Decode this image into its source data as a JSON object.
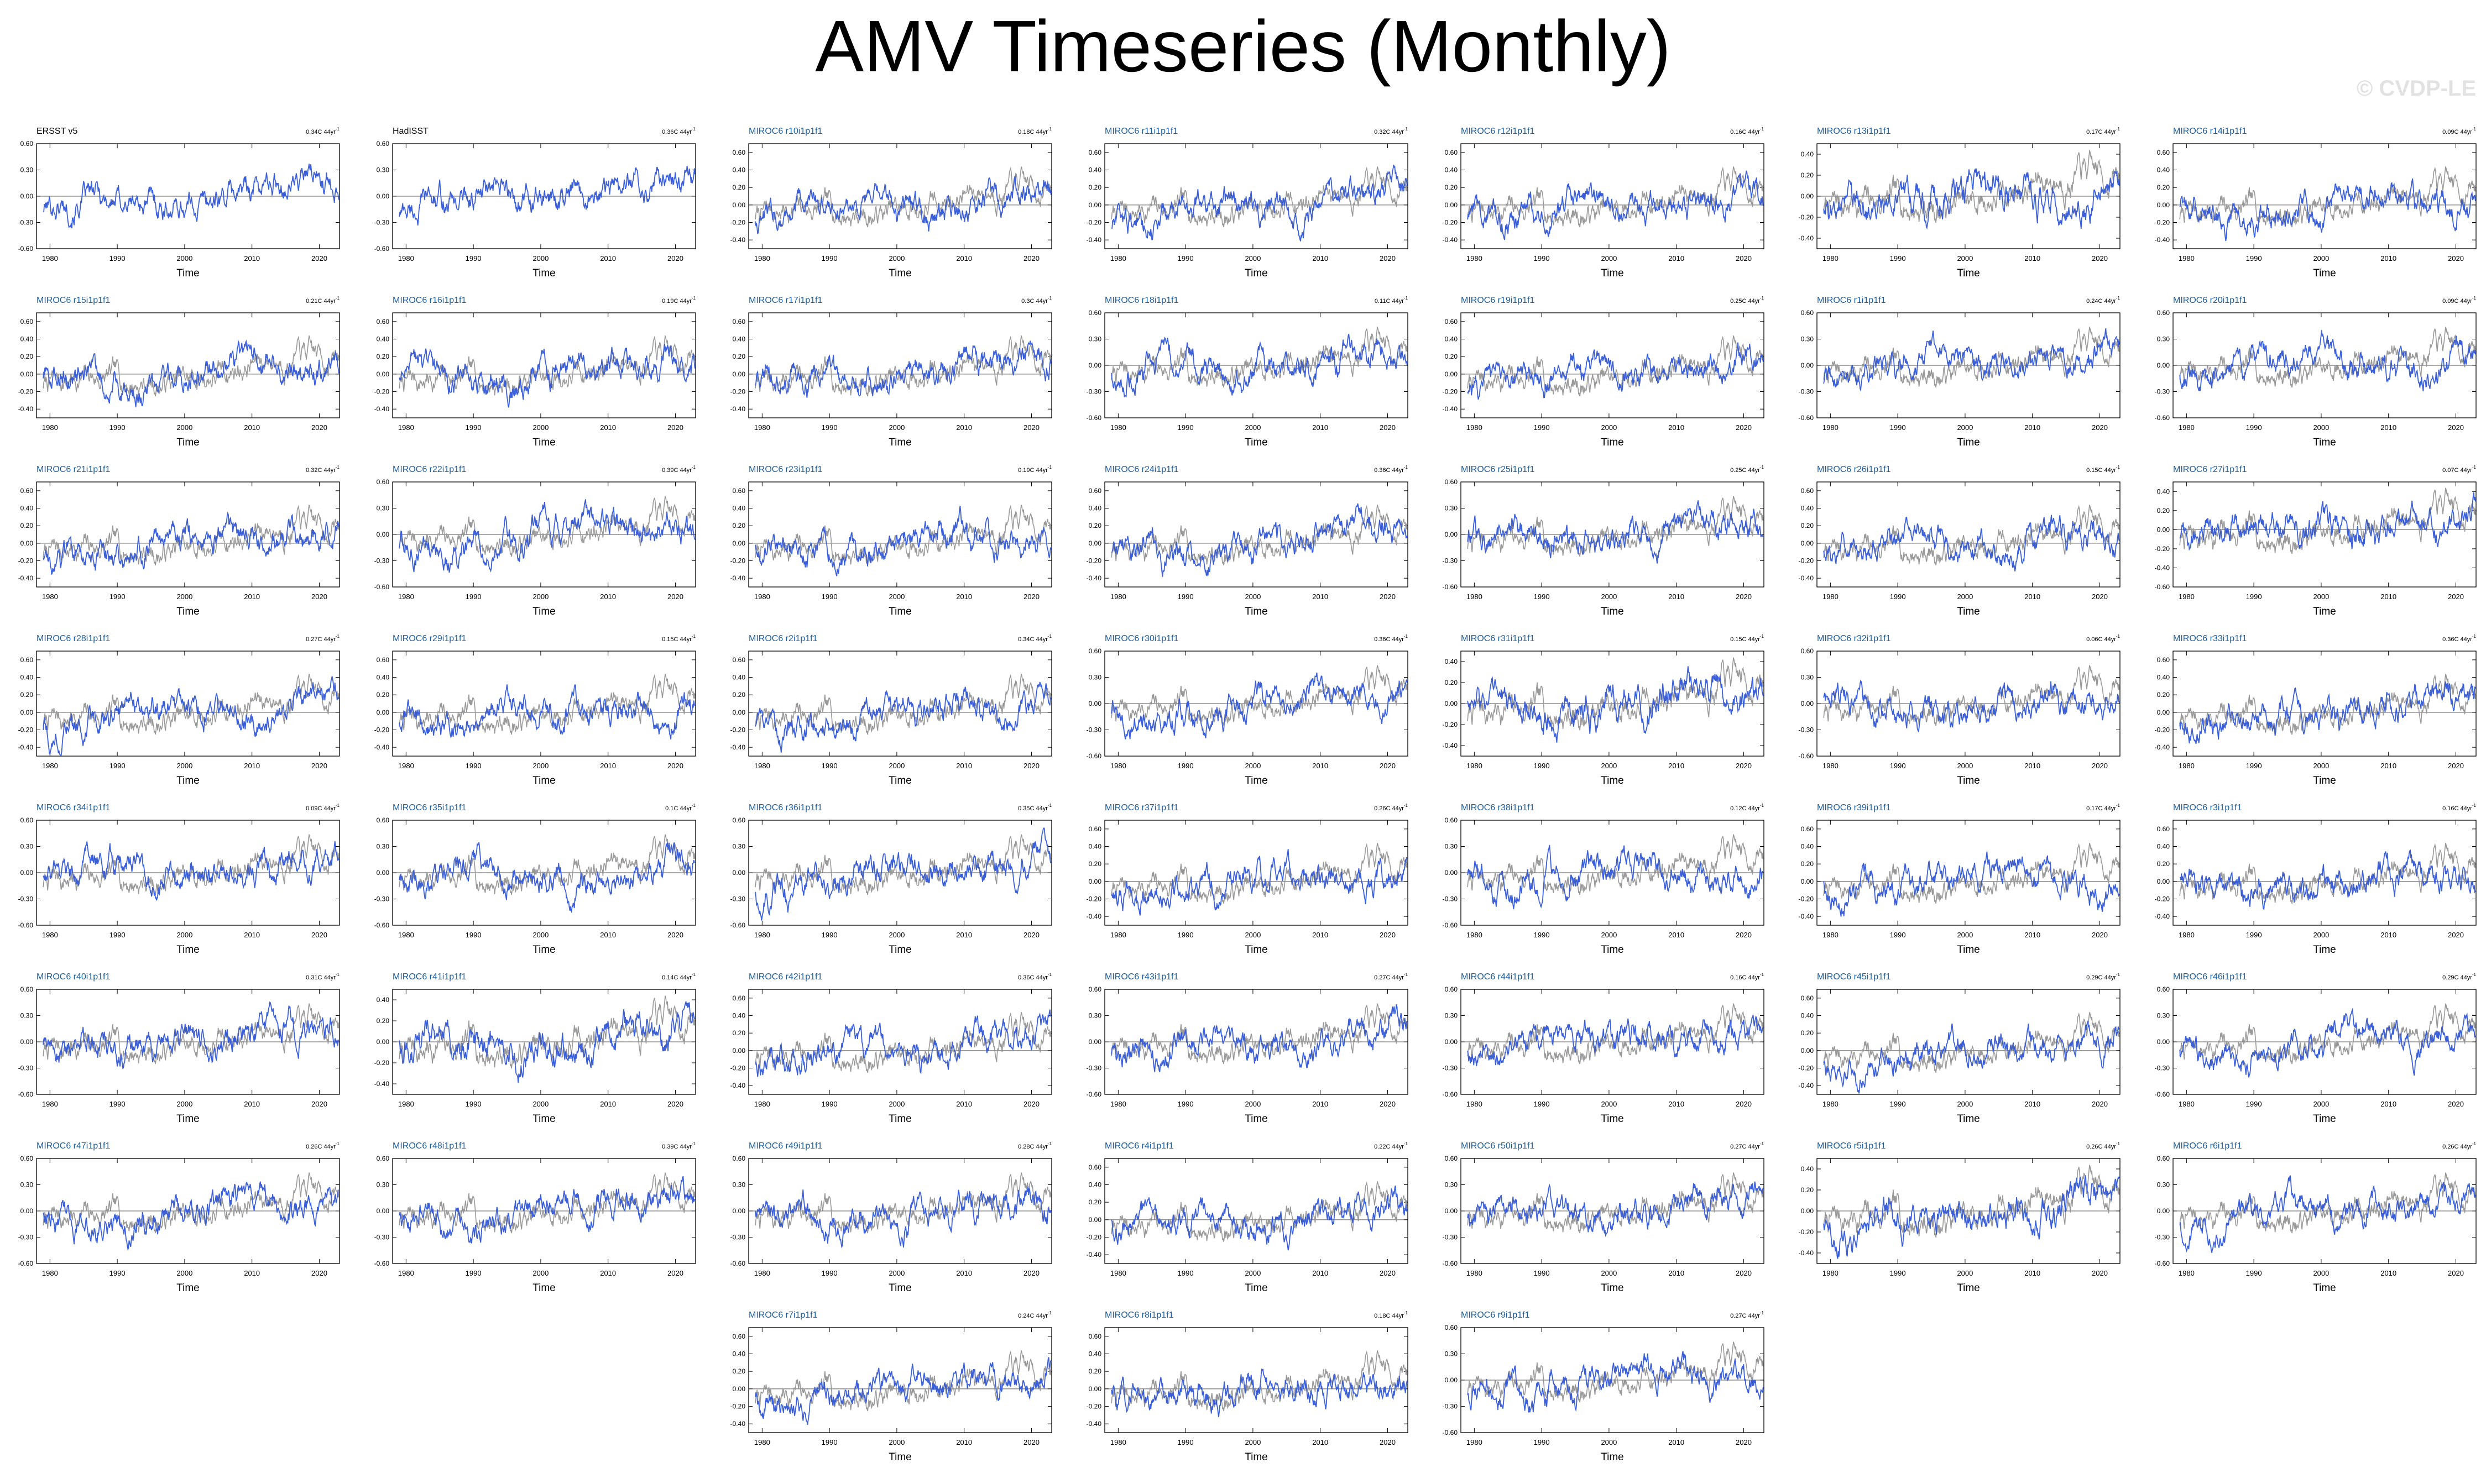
{
  "title": "AMV Timeseries (Monthly)",
  "watermark": "© CVDP-LE",
  "colors": {
    "observed": "#000000",
    "member": "#1a5fa0",
    "obs_line": "#999999",
    "ens_line": "#3a5fd8",
    "zero": "#555555"
  },
  "chart_data": {
    "type": "line",
    "xlabel": "Time",
    "xlim": [
      1978,
      2023
    ],
    "xticks": [
      1980,
      1990,
      2000,
      2010,
      2020
    ],
    "panels": [
      {
        "name": "ERSST v5",
        "trend": "0.34C 44yr",
        "label_type": "obs",
        "row": 0,
        "col": 0,
        "yticks": [
          "0.60",
          "0.30",
          "0.00",
          "-0.30",
          "-0.60"
        ],
        "ylim": [
          -0.6,
          0.6
        ],
        "obs": true
      },
      {
        "name": "HadISST",
        "trend": "0.36C 44yr",
        "label_type": "obs",
        "row": 0,
        "col": 1,
        "yticks": [
          "0.60",
          "0.30",
          "0.00",
          "-0.30",
          "-0.60"
        ],
        "ylim": [
          -0.6,
          0.6
        ],
        "obs": true
      },
      {
        "name": "MIROC6 r10i1p1f1",
        "trend": "0.18C 44yr",
        "row": 0,
        "col": 2,
        "yticks": [
          "0.60",
          "0.40",
          "0.20",
          "0.00",
          "-0.20",
          "-0.40"
        ],
        "ylim": [
          -0.5,
          0.7
        ]
      },
      {
        "name": "MIROC6 r11i1p1f1",
        "trend": "0.32C 44yr",
        "row": 0,
        "col": 3,
        "yticks": [
          "0.60",
          "0.40",
          "0.20",
          "0.00",
          "-0.20",
          "-0.40"
        ],
        "ylim": [
          -0.5,
          0.7
        ]
      },
      {
        "name": "MIROC6 r12i1p1f1",
        "trend": "0.16C 44yr",
        "row": 0,
        "col": 4,
        "yticks": [
          "0.60",
          "0.40",
          "0.20",
          "0.00",
          "-0.20",
          "-0.40"
        ],
        "ylim": [
          -0.5,
          0.7
        ]
      },
      {
        "name": "MIROC6 r13i1p1f1",
        "trend": "0.17C 44yr",
        "row": 0,
        "col": 5,
        "yticks": [
          "0.40",
          "0.20",
          "0.00",
          "-0.20",
          "-0.40"
        ],
        "ylim": [
          -0.5,
          0.5
        ]
      },
      {
        "name": "MIROC6 r14i1p1f1",
        "trend": "0.09C 44yr",
        "row": 0,
        "col": 6,
        "yticks": [
          "0.60",
          "0.40",
          "0.20",
          "0.00",
          "-0.20",
          "-0.40"
        ],
        "ylim": [
          -0.5,
          0.7
        ]
      },
      {
        "name": "MIROC6 r15i1p1f1",
        "trend": "0.21C 44yr",
        "row": 1,
        "col": 0,
        "yticks": [
          "0.60",
          "0.40",
          "0.20",
          "0.00",
          "-0.20",
          "-0.40"
        ],
        "ylim": [
          -0.5,
          0.7
        ]
      },
      {
        "name": "MIROC6 r16i1p1f1",
        "trend": "0.19C 44yr",
        "row": 1,
        "col": 1,
        "yticks": [
          "0.60",
          "0.40",
          "0.20",
          "0.00",
          "-0.20",
          "-0.40"
        ],
        "ylim": [
          -0.5,
          0.7
        ]
      },
      {
        "name": "MIROC6 r17i1p1f1",
        "trend": "0.3C 44yr",
        "row": 1,
        "col": 2,
        "yticks": [
          "0.60",
          "0.40",
          "0.20",
          "0.00",
          "-0.20",
          "-0.40"
        ],
        "ylim": [
          -0.5,
          0.7
        ]
      },
      {
        "name": "MIROC6 r18i1p1f1",
        "trend": "0.11C 44yr",
        "row": 1,
        "col": 3,
        "yticks": [
          "0.60",
          "0.30",
          "0.00",
          "-0.30",
          "-0.60"
        ],
        "ylim": [
          -0.6,
          0.6
        ]
      },
      {
        "name": "MIROC6 r19i1p1f1",
        "trend": "0.25C 44yr",
        "row": 1,
        "col": 4,
        "yticks": [
          "0.60",
          "0.40",
          "0.20",
          "0.00",
          "-0.20",
          "-0.40"
        ],
        "ylim": [
          -0.5,
          0.7
        ]
      },
      {
        "name": "MIROC6 r1i1p1f1",
        "trend": "0.24C 44yr",
        "row": 1,
        "col": 5,
        "yticks": [
          "0.60",
          "0.30",
          "0.00",
          "-0.30",
          "-0.60"
        ],
        "ylim": [
          -0.6,
          0.6
        ]
      },
      {
        "name": "MIROC6 r20i1p1f1",
        "trend": "0.09C 44yr",
        "row": 1,
        "col": 6,
        "yticks": [
          "0.60",
          "0.30",
          "0.00",
          "-0.30",
          "-0.60"
        ],
        "ylim": [
          -0.6,
          0.6
        ]
      },
      {
        "name": "MIROC6 r21i1p1f1",
        "trend": "0.32C 44yr",
        "row": 2,
        "col": 0,
        "yticks": [
          "0.60",
          "0.40",
          "0.20",
          "0.00",
          "-0.20",
          "-0.40"
        ],
        "ylim": [
          -0.5,
          0.7
        ]
      },
      {
        "name": "MIROC6 r22i1p1f1",
        "trend": "0.39C 44yr",
        "row": 2,
        "col": 1,
        "yticks": [
          "0.60",
          "0.30",
          "0.00",
          "-0.30",
          "-0.60"
        ],
        "ylim": [
          -0.6,
          0.6
        ]
      },
      {
        "name": "MIROC6 r23i1p1f1",
        "trend": "0.19C 44yr",
        "row": 2,
        "col": 2,
        "yticks": [
          "0.60",
          "0.40",
          "0.20",
          "0.00",
          "-0.20",
          "-0.40"
        ],
        "ylim": [
          -0.5,
          0.7
        ]
      },
      {
        "name": "MIROC6 r24i1p1f1",
        "trend": "0.36C 44yr",
        "row": 2,
        "col": 3,
        "yticks": [
          "0.60",
          "0.40",
          "0.20",
          "0.00",
          "-0.20",
          "-0.40"
        ],
        "ylim": [
          -0.5,
          0.7
        ]
      },
      {
        "name": "MIROC6 r25i1p1f1",
        "trend": "0.25C 44yr",
        "row": 2,
        "col": 4,
        "yticks": [
          "0.60",
          "0.30",
          "0.00",
          "-0.30",
          "-0.60"
        ],
        "ylim": [
          -0.6,
          0.6
        ]
      },
      {
        "name": "MIROC6 r26i1p1f1",
        "trend": "0.15C 44yr",
        "row": 2,
        "col": 5,
        "yticks": [
          "0.60",
          "0.40",
          "0.20",
          "0.00",
          "-0.20",
          "-0.40"
        ],
        "ylim": [
          -0.5,
          0.7
        ]
      },
      {
        "name": "MIROC6 r27i1p1f1",
        "trend": "0.07C 44yr",
        "row": 2,
        "col": 6,
        "yticks": [
          "0.40",
          "0.20",
          "0.00",
          "-0.20",
          "-0.40",
          "-0.60"
        ],
        "ylim": [
          -0.6,
          0.5
        ]
      },
      {
        "name": "MIROC6 r28i1p1f1",
        "trend": "0.27C 44yr",
        "row": 3,
        "col": 0,
        "yticks": [
          "0.60",
          "0.40",
          "0.20",
          "0.00",
          "-0.20",
          "-0.40"
        ],
        "ylim": [
          -0.5,
          0.7
        ]
      },
      {
        "name": "MIROC6 r29i1p1f1",
        "trend": "0.15C 44yr",
        "row": 3,
        "col": 1,
        "yticks": [
          "0.60",
          "0.40",
          "0.20",
          "0.00",
          "-0.20",
          "-0.40"
        ],
        "ylim": [
          -0.5,
          0.7
        ]
      },
      {
        "name": "MIROC6 r2i1p1f1",
        "trend": "0.34C 44yr",
        "row": 3,
        "col": 2,
        "yticks": [
          "0.60",
          "0.40",
          "0.20",
          "0.00",
          "-0.20",
          "-0.40"
        ],
        "ylim": [
          -0.5,
          0.7
        ]
      },
      {
        "name": "MIROC6 r30i1p1f1",
        "trend": "0.36C 44yr",
        "row": 3,
        "col": 3,
        "yticks": [
          "0.60",
          "0.30",
          "0.00",
          "-0.30",
          "-0.60"
        ],
        "ylim": [
          -0.6,
          0.6
        ]
      },
      {
        "name": "MIROC6 r31i1p1f1",
        "trend": "0.15C 44yr",
        "row": 3,
        "col": 4,
        "yticks": [
          "0.40",
          "0.20",
          "0.00",
          "-0.20",
          "-0.40"
        ],
        "ylim": [
          -0.5,
          0.5
        ]
      },
      {
        "name": "MIROC6 r32i1p1f1",
        "trend": "0.06C 44yr",
        "row": 3,
        "col": 5,
        "yticks": [
          "0.60",
          "0.30",
          "0.00",
          "-0.30",
          "-0.60"
        ],
        "ylim": [
          -0.6,
          0.6
        ]
      },
      {
        "name": "MIROC6 r33i1p1f1",
        "trend": "0.36C 44yr",
        "row": 3,
        "col": 6,
        "yticks": [
          "0.60",
          "0.40",
          "0.20",
          "0.00",
          "-0.20",
          "-0.40"
        ],
        "ylim": [
          -0.5,
          0.7
        ]
      },
      {
        "name": "MIROC6 r34i1p1f1",
        "trend": "0.09C 44yr",
        "row": 4,
        "col": 0,
        "yticks": [
          "0.60",
          "0.30",
          "0.00",
          "-0.30",
          "-0.60"
        ],
        "ylim": [
          -0.6,
          0.6
        ]
      },
      {
        "name": "MIROC6 r35i1p1f1",
        "trend": "0.1C 44yr",
        "row": 4,
        "col": 1,
        "yticks": [
          "0.60",
          "0.30",
          "0.00",
          "-0.30",
          "-0.60"
        ],
        "ylim": [
          -0.6,
          0.6
        ]
      },
      {
        "name": "MIROC6 r36i1p1f1",
        "trend": "0.35C 44yr",
        "row": 4,
        "col": 2,
        "yticks": [
          "0.60",
          "0.30",
          "0.00",
          "-0.30",
          "-0.60"
        ],
        "ylim": [
          -0.6,
          0.6
        ]
      },
      {
        "name": "MIROC6 r37i1p1f1",
        "trend": "0.26C 44yr",
        "row": 4,
        "col": 3,
        "yticks": [
          "0.60",
          "0.40",
          "0.20",
          "0.00",
          "-0.20",
          "-0.40"
        ],
        "ylim": [
          -0.5,
          0.7
        ]
      },
      {
        "name": "MIROC6 r38i1p1f1",
        "trend": "0.12C 44yr",
        "row": 4,
        "col": 4,
        "yticks": [
          "0.60",
          "0.30",
          "0.00",
          "-0.30",
          "-0.60"
        ],
        "ylim": [
          -0.6,
          0.6
        ]
      },
      {
        "name": "MIROC6 r39i1p1f1",
        "trend": "0.17C 44yr",
        "row": 4,
        "col": 5,
        "yticks": [
          "0.60",
          "0.40",
          "0.20",
          "0.00",
          "-0.20",
          "-0.40"
        ],
        "ylim": [
          -0.5,
          0.7
        ]
      },
      {
        "name": "MIROC6 r3i1p1f1",
        "trend": "0.16C 44yr",
        "row": 4,
        "col": 6,
        "yticks": [
          "0.60",
          "0.40",
          "0.20",
          "0.00",
          "-0.20",
          "-0.40"
        ],
        "ylim": [
          -0.5,
          0.7
        ]
      },
      {
        "name": "MIROC6 r40i1p1f1",
        "trend": "0.31C 44yr",
        "row": 5,
        "col": 0,
        "yticks": [
          "0.60",
          "0.30",
          "0.00",
          "-0.30",
          "-0.60"
        ],
        "ylim": [
          -0.6,
          0.6
        ]
      },
      {
        "name": "MIROC6 r41i1p1f1",
        "trend": "0.14C 44yr",
        "row": 5,
        "col": 1,
        "yticks": [
          "0.40",
          "0.20",
          "0.00",
          "-0.20",
          "-0.40"
        ],
        "ylim": [
          -0.5,
          0.5
        ]
      },
      {
        "name": "MIROC6 r42i1p1f1",
        "trend": "0.36C 44yr",
        "row": 5,
        "col": 2,
        "yticks": [
          "0.60",
          "0.40",
          "0.20",
          "0.00",
          "-0.20",
          "-0.40"
        ],
        "ylim": [
          -0.5,
          0.7
        ]
      },
      {
        "name": "MIROC6 r43i1p1f1",
        "trend": "0.27C 44yr",
        "row": 5,
        "col": 3,
        "yticks": [
          "0.60",
          "0.30",
          "0.00",
          "-0.30",
          "-0.60"
        ],
        "ylim": [
          -0.6,
          0.6
        ]
      },
      {
        "name": "MIROC6 r44i1p1f1",
        "trend": "0.16C 44yr",
        "row": 5,
        "col": 4,
        "yticks": [
          "0.60",
          "0.30",
          "0.00",
          "-0.30",
          "-0.60"
        ],
        "ylim": [
          -0.6,
          0.6
        ]
      },
      {
        "name": "MIROC6 r45i1p1f1",
        "trend": "0.29C 44yr",
        "row": 5,
        "col": 5,
        "yticks": [
          "0.60",
          "0.40",
          "0.20",
          "0.00",
          "-0.20",
          "-0.40"
        ],
        "ylim": [
          -0.5,
          0.7
        ]
      },
      {
        "name": "MIROC6 r46i1p1f1",
        "trend": "0.29C 44yr",
        "row": 5,
        "col": 6,
        "yticks": [
          "0.60",
          "0.30",
          "0.00",
          "-0.30",
          "-0.60"
        ],
        "ylim": [
          -0.6,
          0.6
        ]
      },
      {
        "name": "MIROC6 r47i1p1f1",
        "trend": "0.26C 44yr",
        "row": 6,
        "col": 0,
        "yticks": [
          "0.60",
          "0.30",
          "0.00",
          "-0.30",
          "-0.60"
        ],
        "ylim": [
          -0.6,
          0.6
        ]
      },
      {
        "name": "MIROC6 r48i1p1f1",
        "trend": "0.39C 44yr",
        "row": 6,
        "col": 1,
        "yticks": [
          "0.60",
          "0.30",
          "0.00",
          "-0.30",
          "-0.60"
        ],
        "ylim": [
          -0.6,
          0.6
        ]
      },
      {
        "name": "MIROC6 r49i1p1f1",
        "trend": "0.28C 44yr",
        "row": 6,
        "col": 2,
        "yticks": [
          "0.60",
          "0.30",
          "0.00",
          "-0.30",
          "-0.60"
        ],
        "ylim": [
          -0.6,
          0.6
        ]
      },
      {
        "name": "MIROC6 r4i1p1f1",
        "trend": "0.22C 44yr",
        "row": 6,
        "col": 3,
        "yticks": [
          "0.60",
          "0.40",
          "0.20",
          "0.00",
          "-0.20",
          "-0.40"
        ],
        "ylim": [
          -0.5,
          0.7
        ]
      },
      {
        "name": "MIROC6 r50i1p1f1",
        "trend": "0.27C 44yr",
        "row": 6,
        "col": 4,
        "yticks": [
          "0.60",
          "0.30",
          "0.00",
          "-0.30",
          "-0.60"
        ],
        "ylim": [
          -0.6,
          0.6
        ]
      },
      {
        "name": "MIROC6 r5i1p1f1",
        "trend": "0.26C 44yr",
        "row": 6,
        "col": 5,
        "yticks": [
          "0.40",
          "0.20",
          "0.00",
          "-0.20",
          "-0.40"
        ],
        "ylim": [
          -0.5,
          0.5
        ]
      },
      {
        "name": "MIROC6 r6i1p1f1",
        "trend": "0.26C 44yr",
        "row": 6,
        "col": 6,
        "yticks": [
          "0.60",
          "0.30",
          "0.00",
          "-0.30",
          "-0.60"
        ],
        "ylim": [
          -0.6,
          0.6
        ]
      },
      {
        "name": "MIROC6 r7i1p1f1",
        "trend": "0.24C 44yr",
        "row": 7,
        "col": 2,
        "yticks": [
          "0.60",
          "0.40",
          "0.20",
          "0.00",
          "-0.20",
          "-0.40"
        ],
        "ylim": [
          -0.5,
          0.7
        ]
      },
      {
        "name": "MIROC6 r8i1p1f1",
        "trend": "0.18C 44yr",
        "row": 7,
        "col": 3,
        "yticks": [
          "0.60",
          "0.40",
          "0.20",
          "0.00",
          "-0.20",
          "-0.40"
        ],
        "ylim": [
          -0.5,
          0.7
        ]
      },
      {
        "name": "MIROC6 r9i1p1f1",
        "trend": "0.27C 44yr",
        "row": 7,
        "col": 4,
        "yticks": [
          "0.60",
          "0.30",
          "0.00",
          "-0.30",
          "-0.60"
        ],
        "ylim": [
          -0.6,
          0.6
        ]
      }
    ]
  }
}
